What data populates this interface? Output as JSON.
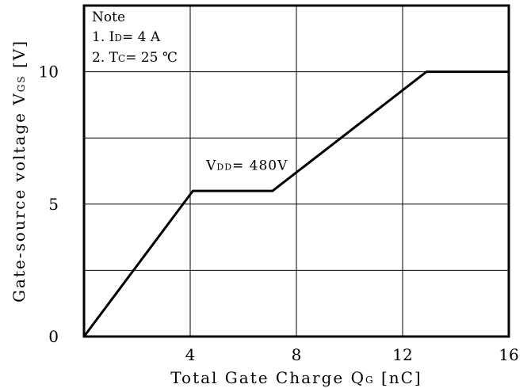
{
  "chart_data": {
    "type": "line",
    "title": "",
    "xlabel": "Total Gate Charge Q",
    "xlabel_sub": "G",
    "xlabel_unit": "[nC]",
    "ylabel": "Gate-source voltage V",
    "ylabel_sub": "GS",
    "ylabel_unit": "[V]",
    "xlim": [
      0,
      16
    ],
    "ylim": [
      0,
      12.5
    ],
    "x_ticks": [
      4,
      8,
      12,
      16
    ],
    "x_tick_labels": [
      "4",
      "8",
      "12",
      "16"
    ],
    "y_ticks": [
      0,
      5,
      10
    ],
    "y_tick_labels": [
      "0",
      "5",
      "10"
    ],
    "grid": true,
    "x_grid": [
      4,
      8,
      12,
      16
    ],
    "y_grid": [
      2.5,
      5,
      7.5,
      10
    ],
    "series": [
      {
        "x": [
          0,
          4.1,
          7.1,
          12.9,
          16
        ],
        "y": [
          0,
          5.5,
          5.5,
          10,
          10
        ]
      }
    ],
    "annotations": [
      {
        "prefix": "V",
        "sub": "DD",
        "suffix": "= 480V",
        "x": 4.6,
        "y": 6.3
      }
    ],
    "note": {
      "title": "Note",
      "line1": "1.  I",
      "line1_sub": "D",
      "line1_rest": "= 4 A",
      "line2": "2.  T",
      "line2_sub": "C",
      "line2_rest": "= 25 ℃"
    }
  }
}
